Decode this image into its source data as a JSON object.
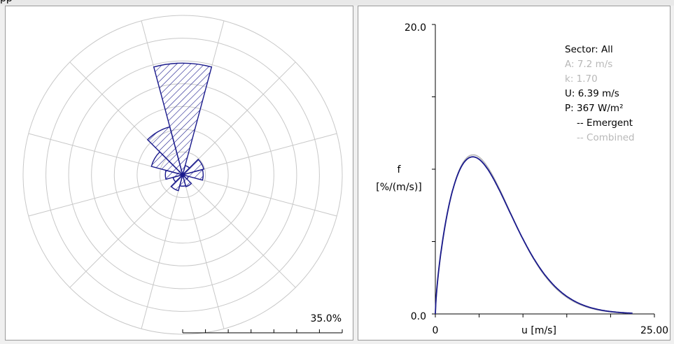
{
  "topstrip": {
    "text": "pp"
  },
  "colors": {
    "series": "#1a1a8c",
    "grid": "#c8c8c8",
    "muted": "#b8b8b8",
    "axis": "#000000"
  },
  "chart_data": [
    {
      "type": "polar_bar",
      "sectors": 12,
      "bar_values_percent": [
        24.5,
        2.1,
        4.8,
        4.5,
        1.3,
        2.7,
        2.5,
        3.6,
        2.2,
        3.8,
        7.1,
        10.9
      ],
      "scale_max_percent": 35.0,
      "rings": 7,
      "pattern": "hatched",
      "scale_label": "35.0%"
    },
    {
      "type": "line",
      "xlabel": "u [m/s]",
      "ylabel": "f",
      "ylabel_unit": "[%/(m/s)]",
      "xlim": [
        0,
        25.0
      ],
      "ylim": [
        0,
        20.0
      ],
      "x_tick_labels": [
        "0",
        "25.00"
      ],
      "y_tick_labels": [
        "0.0",
        "20.0"
      ],
      "weibull": {
        "A": 7.2,
        "k": 1.7
      },
      "series": [
        {
          "name": "Emergent",
          "color": "#1a1a8c",
          "A": 7.2,
          "k": 1.7
        },
        {
          "name": "Combined",
          "color": "#b8b8b8",
          "A": 7.15,
          "k": 1.72
        }
      ],
      "info": {
        "sector": "Sector: All",
        "A": "A: 7.2 m/s",
        "k": "k: 1.70",
        "U": "U: 6.39 m/s",
        "P": "P: 367 W/m²",
        "emergent": "-- Emergent",
        "combined": "-- Combined"
      }
    }
  ]
}
